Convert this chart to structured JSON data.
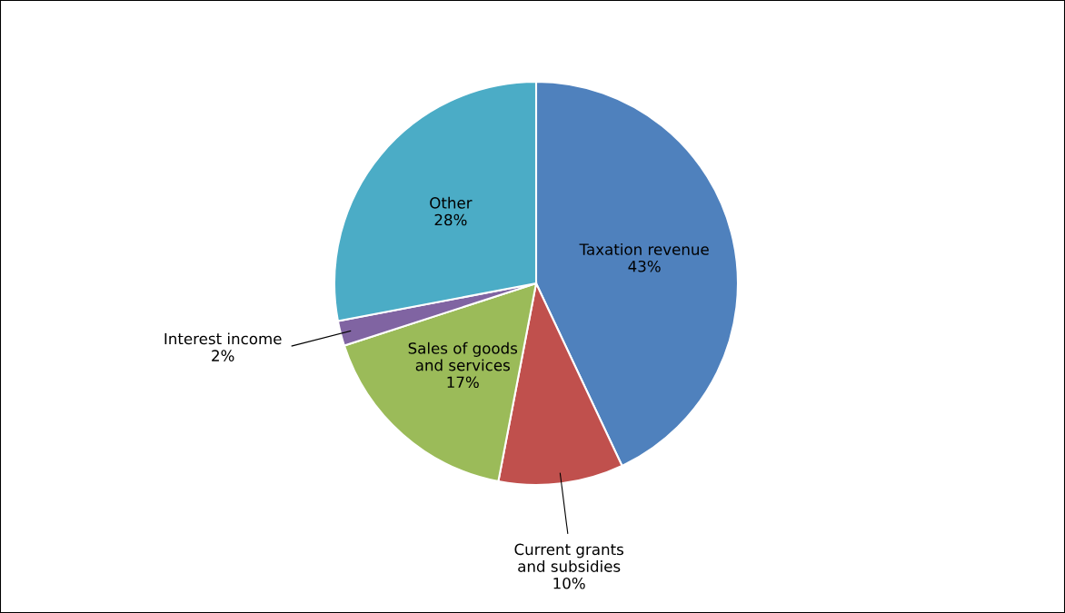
{
  "chart_data": {
    "type": "pie",
    "categories": [
      "Taxation revenue",
      "Current grants and subsidies",
      "Sales of goods and services",
      "Interest income",
      "Other"
    ],
    "values": [
      43,
      10,
      17,
      2,
      28
    ],
    "colors": [
      "#4f81bd",
      "#c0504d",
      "#9bbb59",
      "#8064a2",
      "#4bacc6"
    ],
    "value_labels": [
      "43%",
      "10%",
      "17%",
      "2%",
      "28%"
    ],
    "legend": false
  }
}
